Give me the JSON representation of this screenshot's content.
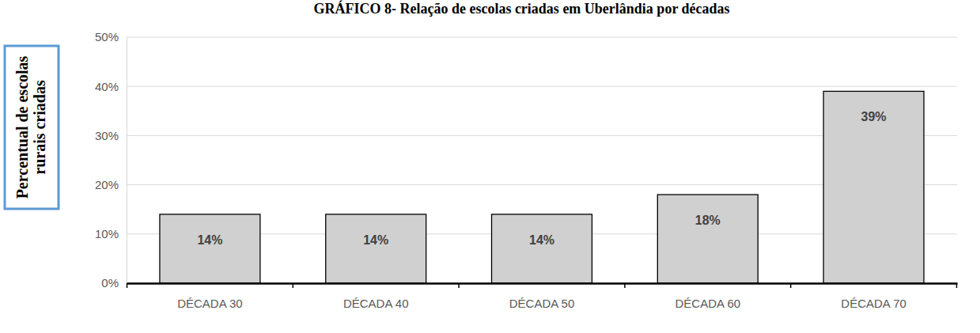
{
  "chart_data": {
    "type": "bar",
    "title": "GRÁFICO 8- Relação de escolas criadas em Uberlândia por décadas",
    "y_label": "Percentual de escolas rurais criadas",
    "categories": [
      "DÉCADA 30",
      "DÉCADA 40",
      "DÉCADA 50",
      "DÉCADA 60",
      "DÉCADA 70"
    ],
    "values": [
      14,
      14,
      14,
      18,
      39
    ],
    "value_labels": [
      "14%",
      "14%",
      "14%",
      "18%",
      "39%"
    ],
    "color": "#d0d0d0",
    "ylim": [
      0,
      50
    ],
    "yticks": [
      {
        "value": 0,
        "label": "0%"
      },
      {
        "value": 10,
        "label": "10%"
      },
      {
        "value": 20,
        "label": "20%"
      },
      {
        "value": 30,
        "label": "30%"
      },
      {
        "value": 40,
        "label": "40%"
      },
      {
        "value": 50,
        "label": "50%"
      }
    ],
    "grid": true,
    "data_labels": true
  }
}
